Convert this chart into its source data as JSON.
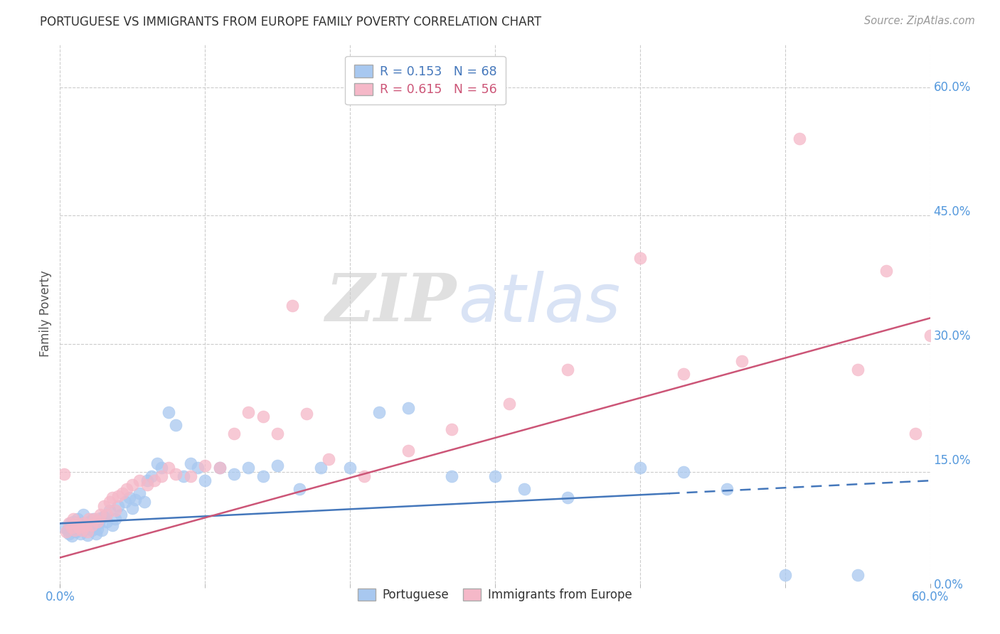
{
  "title": "PORTUGUESE VS IMMIGRANTS FROM EUROPE FAMILY POVERTY CORRELATION CHART",
  "source": "Source: ZipAtlas.com",
  "ylabel_label": "Family Poverty",
  "right_yticks": [
    0.0,
    0.15,
    0.3,
    0.45,
    0.6
  ],
  "xmin": 0.0,
  "xmax": 0.6,
  "ymin": 0.02,
  "ymax": 0.65,
  "blue_R": 0.153,
  "blue_N": 68,
  "pink_R": 0.615,
  "pink_N": 56,
  "blue_color": "#A8C8F0",
  "pink_color": "#F5B8C8",
  "blue_line_color": "#4477BB",
  "pink_line_color": "#CC5577",
  "blue_scatter": {
    "x": [
      0.003,
      0.005,
      0.006,
      0.007,
      0.008,
      0.009,
      0.01,
      0.011,
      0.012,
      0.013,
      0.014,
      0.015,
      0.016,
      0.017,
      0.018,
      0.019,
      0.02,
      0.021,
      0.022,
      0.023,
      0.024,
      0.025,
      0.026,
      0.027,
      0.028,
      0.029,
      0.03,
      0.032,
      0.034,
      0.036,
      0.038,
      0.04,
      0.042,
      0.045,
      0.048,
      0.05,
      0.052,
      0.055,
      0.058,
      0.06,
      0.063,
      0.067,
      0.07,
      0.075,
      0.08,
      0.085,
      0.09,
      0.095,
      0.1,
      0.11,
      0.12,
      0.13,
      0.14,
      0.15,
      0.165,
      0.18,
      0.2,
      0.22,
      0.24,
      0.27,
      0.3,
      0.32,
      0.35,
      0.4,
      0.43,
      0.46,
      0.5,
      0.55
    ],
    "y": [
      0.085,
      0.082,
      0.078,
      0.09,
      0.075,
      0.092,
      0.088,
      0.08,
      0.095,
      0.085,
      0.078,
      0.09,
      0.1,
      0.083,
      0.088,
      0.076,
      0.092,
      0.086,
      0.082,
      0.095,
      0.088,
      0.078,
      0.084,
      0.09,
      0.096,
      0.082,
      0.098,
      0.092,
      0.105,
      0.088,
      0.095,
      0.11,
      0.1,
      0.115,
      0.12,
      0.108,
      0.118,
      0.125,
      0.115,
      0.14,
      0.145,
      0.16,
      0.155,
      0.22,
      0.205,
      0.145,
      0.16,
      0.155,
      0.14,
      0.155,
      0.148,
      0.155,
      0.145,
      0.158,
      0.13,
      0.155,
      0.155,
      0.22,
      0.225,
      0.145,
      0.145,
      0.13,
      0.12,
      0.155,
      0.15,
      0.13,
      0.03,
      0.03
    ]
  },
  "pink_scatter": {
    "x": [
      0.003,
      0.004,
      0.006,
      0.008,
      0.009,
      0.01,
      0.011,
      0.012,
      0.013,
      0.015,
      0.016,
      0.018,
      0.019,
      0.02,
      0.022,
      0.024,
      0.026,
      0.028,
      0.03,
      0.032,
      0.034,
      0.036,
      0.038,
      0.04,
      0.043,
      0.046,
      0.05,
      0.055,
      0.06,
      0.065,
      0.07,
      0.075,
      0.08,
      0.09,
      0.1,
      0.11,
      0.12,
      0.13,
      0.14,
      0.15,
      0.16,
      0.17,
      0.185,
      0.21,
      0.24,
      0.27,
      0.31,
      0.35,
      0.4,
      0.43,
      0.47,
      0.51,
      0.55,
      0.57,
      0.59,
      0.6
    ],
    "y": [
      0.148,
      0.08,
      0.09,
      0.085,
      0.095,
      0.082,
      0.09,
      0.088,
      0.085,
      0.082,
      0.09,
      0.088,
      0.08,
      0.095,
      0.088,
      0.095,
      0.092,
      0.1,
      0.11,
      0.1,
      0.115,
      0.12,
      0.105,
      0.122,
      0.125,
      0.13,
      0.135,
      0.14,
      0.135,
      0.14,
      0.145,
      0.155,
      0.148,
      0.145,
      0.158,
      0.155,
      0.195,
      0.22,
      0.215,
      0.195,
      0.345,
      0.218,
      0.165,
      0.145,
      0.175,
      0.2,
      0.23,
      0.27,
      0.4,
      0.265,
      0.28,
      0.54,
      0.27,
      0.385,
      0.195,
      0.31
    ]
  },
  "blue_line": {
    "x0": 0.0,
    "y0": 0.09,
    "x1": 0.6,
    "y1": 0.14
  },
  "pink_line": {
    "x0": 0.0,
    "y0": 0.05,
    "x1": 0.6,
    "y1": 0.33
  },
  "blue_line_solid_end": 0.42,
  "watermark_zip": "ZIP",
  "watermark_atlas": "atlas",
  "background_color": "#FFFFFF",
  "grid_color": "#CCCCCC",
  "title_color": "#333333",
  "tick_label_color": "#5599DD",
  "legend_border_color": "#CCCCCC"
}
